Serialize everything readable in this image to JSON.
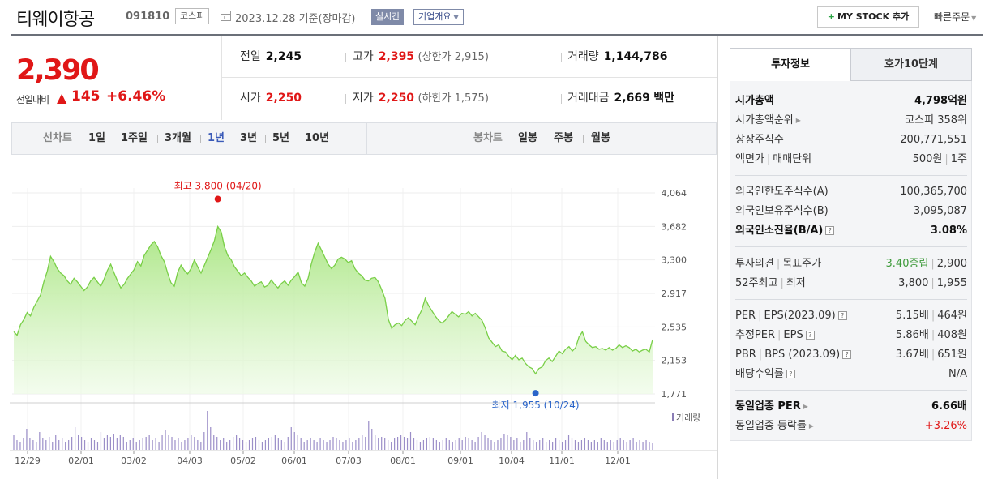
{
  "header": {
    "company_name": "티웨이항공",
    "code": "091810",
    "market": "코스피",
    "as_of": "2023.12.28  기준(장마감)",
    "realtime_label": "실시간",
    "company_info_label": "기업개요",
    "mystock_label": "MY STOCK 추가",
    "quick_order_label": "빠른주문"
  },
  "price": {
    "current": "2,390",
    "change_label": "전일대비",
    "change_amount": "145",
    "change_rate": "+6.46%",
    "prev_close_label": "전일",
    "prev_close": "2,245",
    "open_label": "시가",
    "open": "2,250",
    "high_label": "고가",
    "high": "2,395",
    "upper_limit": "(상한가 2,915)",
    "low_label": "저가",
    "low": "2,250",
    "lower_limit": "(하한가 1,575)",
    "volume_label": "거래량",
    "volume": "1,144,786",
    "amount_label": "거래대금",
    "amount": "2,669",
    "amount_unit": "백만"
  },
  "chart_tabs": {
    "line_label": "선차트",
    "line_periods": [
      "1일",
      "1주일",
      "3개월",
      "1년",
      "3년",
      "5년",
      "10년"
    ],
    "active_period": "1년",
    "candle_label": "봉차트",
    "candle_periods": [
      "일봉",
      "주봉",
      "월봉"
    ]
  },
  "chart_data": {
    "type": "area",
    "y_ticks": [
      "4,064",
      "3,682",
      "3,300",
      "2,917",
      "2,535",
      "2,153",
      "1,771"
    ],
    "ylim": [
      1771,
      4064
    ],
    "x_ticks": [
      "12/29",
      "02/01",
      "03/02",
      "04/03",
      "05/02",
      "06/01",
      "07/03",
      "08/01",
      "09/01",
      "10/04",
      "11/01",
      "12/01"
    ],
    "high_annotation": "최고 3,800 (04/20)",
    "low_annotation": "최저 1,955 (10/24)",
    "high_value": 3800,
    "low_value": 1955,
    "volume_legend": "거래량",
    "price_series": [
      2480,
      2440,
      2560,
      2620,
      2700,
      2660,
      2760,
      2830,
      2900,
      3050,
      3170,
      3340,
      3280,
      3200,
      3150,
      3120,
      3060,
      3020,
      3090,
      3050,
      3000,
      2950,
      2990,
      3060,
      3100,
      3050,
      3000,
      3080,
      3180,
      3250,
      3150,
      3060,
      2980,
      3020,
      3090,
      3140,
      3190,
      3280,
      3230,
      3350,
      3410,
      3470,
      3510,
      3450,
      3350,
      3280,
      3150,
      3040,
      3000,
      3160,
      3240,
      3180,
      3140,
      3200,
      3300,
      3220,
      3150,
      3240,
      3330,
      3420,
      3520,
      3680,
      3620,
      3450,
      3350,
      3300,
      3220,
      3170,
      3120,
      3150,
      3100,
      3060,
      3000,
      3030,
      3050,
      2990,
      3010,
      3070,
      3020,
      2980,
      3030,
      3060,
      3010,
      3070,
      3110,
      3160,
      3040,
      3000,
      3090,
      3260,
      3390,
      3490,
      3410,
      3330,
      3250,
      3200,
      3240,
      3310,
      3330,
      3310,
      3270,
      3290,
      3200,
      3150,
      3120,
      3070,
      3060,
      3090,
      3100,
      3050,
      2960,
      2860,
      2620,
      2520,
      2560,
      2580,
      2550,
      2610,
      2640,
      2600,
      2560,
      2650,
      2730,
      2860,
      2780,
      2720,
      2660,
      2610,
      2580,
      2610,
      2660,
      2710,
      2680,
      2650,
      2690,
      2680,
      2710,
      2660,
      2690,
      2650,
      2610,
      2520,
      2410,
      2360,
      2310,
      2330,
      2260,
      2250,
      2200,
      2160,
      2210,
      2160,
      2180,
      2120,
      2080,
      2060,
      2000,
      2060,
      2080,
      2150,
      2180,
      2140,
      2200,
      2260,
      2230,
      2280,
      2310,
      2260,
      2300,
      2420,
      2480,
      2370,
      2330,
      2300,
      2310,
      2280,
      2290,
      2270,
      2300,
      2270,
      2290,
      2330,
      2300,
      2320,
      2300,
      2260,
      2280,
      2250,
      2270,
      2280,
      2250,
      2390
    ],
    "volume_series": [
      18,
      12,
      10,
      14,
      26,
      14,
      12,
      10,
      22,
      14,
      12,
      16,
      10,
      18,
      12,
      14,
      10,
      12,
      16,
      28,
      18,
      16,
      12,
      10,
      14,
      12,
      10,
      22,
      14,
      18,
      16,
      20,
      14,
      18,
      16,
      10,
      12,
      14,
      10,
      12,
      14,
      16,
      18,
      12,
      14,
      10,
      18,
      24,
      18,
      16,
      12,
      14,
      10,
      12,
      14,
      18,
      16,
      12,
      10,
      22,
      48,
      28,
      18,
      16,
      12,
      14,
      10,
      12,
      16,
      18,
      14,
      12,
      10,
      12,
      14,
      16,
      12,
      10,
      12,
      14,
      16,
      18,
      14,
      12,
      10,
      16,
      28,
      22,
      18,
      14,
      10,
      12,
      14,
      12,
      10,
      14,
      12,
      10,
      12,
      16,
      14,
      12,
      10,
      12,
      14,
      10,
      12,
      14,
      18,
      16,
      36,
      26,
      18,
      14,
      16,
      14,
      12,
      10,
      14,
      16,
      18,
      16,
      14,
      22,
      14,
      12,
      10,
      12,
      14,
      16,
      14,
      12,
      10,
      12,
      14,
      12,
      10,
      12,
      14,
      12,
      16,
      14,
      12,
      10,
      16,
      22,
      18,
      14,
      12,
      10,
      12,
      14,
      20,
      18,
      16,
      12,
      14,
      10,
      12,
      22,
      14,
      12,
      10,
      12,
      14,
      10,
      12,
      10,
      14,
      12,
      10,
      12,
      18,
      14,
      12,
      10,
      12,
      14,
      12,
      10,
      12,
      10,
      14,
      12,
      10,
      12,
      10,
      12,
      14,
      12,
      10,
      12,
      14,
      10,
      12,
      10,
      12,
      10,
      8
    ]
  },
  "right_panel": {
    "tab_active": "투자정보",
    "tab_other": "호가10단계",
    "market_cap_label": "시가총액",
    "market_cap": "4,798억원",
    "market_cap_rank_label": "시가총액순위",
    "market_cap_rank": "코스피 358위",
    "shares_label": "상장주식수",
    "shares": "200,771,551",
    "par_label": "액면가",
    "trade_unit_label": "매매단위",
    "par": "500원",
    "trade_unit": "1주",
    "foreign_limit_label": "외국인한도주식수(A)",
    "foreign_limit": "100,365,700",
    "foreign_hold_label": "외국인보유주식수(B)",
    "foreign_hold": "3,095,087",
    "foreign_ratio_label": "외국인소진율(B/A)",
    "foreign_ratio": "3.08%",
    "opinion_label": "투자의견",
    "target_label": "목표주가",
    "opinion": "3.40중립",
    "target": "2,900",
    "w52_high_label": "52주최고",
    "w52_low_label": "최저",
    "w52_high": "3,800",
    "w52_low": "1,955",
    "per_label": "PER",
    "eps_label": "EPS(2023.09)",
    "per": "5.15배",
    "eps": "464원",
    "est_per_label": "추정PER",
    "est_eps_label": "EPS",
    "est_per": "5.86배",
    "est_eps": "408원",
    "pbr_label": "PBR",
    "bps_label": "BPS (2023.09)",
    "pbr": "3.67배",
    "bps": "651원",
    "dividend_label": "배당수익률",
    "dividend": "N/A",
    "ind_per_label": "동일업종 PER",
    "ind_per": "6.66배",
    "ind_chg_label": "동일업종 등락률",
    "ind_chg": "+3.26%"
  }
}
